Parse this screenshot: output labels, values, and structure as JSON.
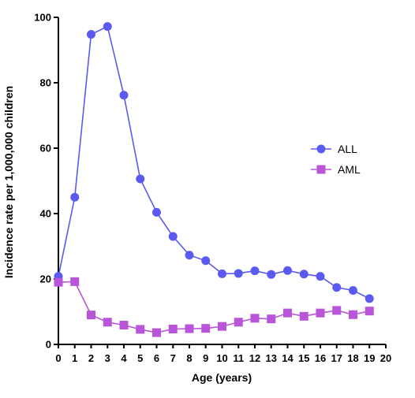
{
  "chart_data": {
    "type": "line",
    "title": "",
    "xlabel": "Age (years)",
    "ylabel": "Incidence rate per 1,000,000 children",
    "xlim": [
      0,
      20
    ],
    "ylim": [
      0,
      100
    ],
    "x_ticks": [
      0,
      1,
      2,
      3,
      4,
      5,
      6,
      7,
      8,
      9,
      10,
      11,
      12,
      13,
      14,
      15,
      16,
      17,
      18,
      19,
      20
    ],
    "y_ticks": [
      0,
      20,
      40,
      60,
      80,
      100
    ],
    "grid": false,
    "legend_position": "right",
    "x": [
      0,
      1,
      2,
      3,
      4,
      5,
      6,
      7,
      8,
      9,
      10,
      11,
      12,
      13,
      14,
      15,
      16,
      17,
      18,
      19
    ],
    "series": [
      {
        "name": "ALL",
        "marker": "circle",
        "color": "#5a5af0",
        "values": [
          20.8,
          45,
          94.8,
          97.2,
          76.2,
          50.6,
          40.4,
          33,
          27.3,
          25.6,
          21.6,
          21.7,
          22.5,
          21.4,
          22.6,
          21.5,
          20.8,
          17.4,
          16.5,
          14
        ]
      },
      {
        "name": "AML",
        "marker": "square",
        "color": "#b855d9",
        "values": [
          19,
          19.2,
          9,
          6.8,
          5.9,
          4.6,
          3.6,
          4.7,
          4.8,
          4.9,
          5.5,
          6.8,
          8,
          7.8,
          9.6,
          8.6,
          9.6,
          10.4,
          9.1,
          10.2
        ]
      }
    ]
  }
}
